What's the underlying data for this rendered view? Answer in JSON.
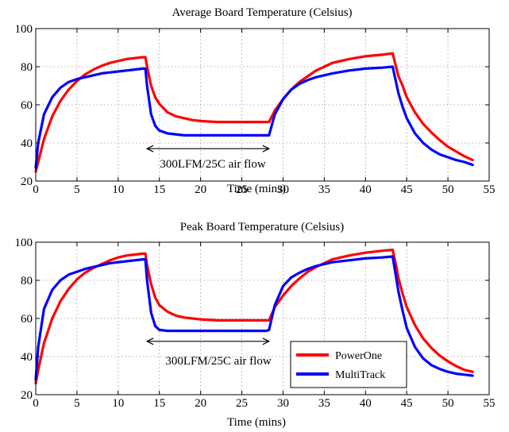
{
  "chart_data": [
    {
      "type": "line",
      "title": "Average Board Temperature (Celsius)",
      "xlabel": "Time (mins)",
      "ylabel": "",
      "xlim": [
        0,
        55
      ],
      "ylim": [
        20,
        100
      ],
      "xticks": [
        "0",
        "5",
        "10",
        "15",
        "20",
        "25",
        "30",
        "35",
        "40",
        "45",
        "50",
        "55"
      ],
      "yticks": [
        "20",
        "40",
        "60",
        "80",
        "100"
      ],
      "grid": true,
      "annotation": {
        "text": "300LFM/25C air flow",
        "x_start": 13.5,
        "x_end": 28.3,
        "y": 37
      },
      "series": [
        {
          "color": "#ff0000",
          "x": [
            0,
            0.3,
            1,
            2,
            3,
            4,
            5,
            6,
            7,
            8,
            9,
            10,
            11,
            12,
            13,
            13.3,
            13.5,
            14,
            14.5,
            15,
            16,
            17,
            18,
            19,
            20,
            22,
            24,
            26,
            28,
            28.3,
            29,
            30,
            31,
            32,
            33,
            34,
            35,
            36,
            38,
            40,
            42,
            43.3,
            43.7,
            44,
            44.5,
            45,
            46,
            47,
            48,
            49,
            50,
            51,
            52,
            53
          ],
          "y": [
            25,
            30,
            42,
            54,
            62,
            68,
            72.5,
            76,
            78.5,
            80.5,
            82,
            83,
            84,
            84.5,
            85,
            85,
            80,
            70,
            64,
            60.5,
            56,
            54,
            53,
            52,
            51.5,
            51,
            51,
            51,
            51,
            51,
            57,
            63,
            68,
            72,
            75,
            78,
            80,
            82,
            84,
            85.5,
            86.3,
            87,
            80,
            75,
            70,
            64,
            56,
            50,
            45.5,
            41.5,
            38,
            35.5,
            33,
            31
          ]
        },
        {
          "color": "#0000ff",
          "x": [
            0,
            0.3,
            1,
            2,
            3,
            4,
            5,
            6,
            7,
            8,
            9,
            10,
            11,
            12,
            13,
            13.3,
            13.5,
            14,
            14.5,
            15,
            16,
            18,
            20,
            22,
            24,
            26,
            28,
            28.3,
            29,
            30,
            31,
            32,
            33,
            34,
            35,
            36,
            38,
            40,
            42,
            43.3,
            43.7,
            44,
            44.5,
            45,
            46,
            47,
            48,
            49,
            50,
            51,
            52,
            53
          ],
          "y": [
            27,
            40,
            55,
            64,
            69,
            72,
            73.5,
            74.5,
            75.5,
            76.5,
            77,
            77.5,
            78,
            78.5,
            79,
            79,
            70,
            55,
            49,
            46.5,
            45,
            44,
            44,
            44,
            44,
            44,
            44,
            44,
            55,
            63,
            68,
            71,
            73,
            74.5,
            75.5,
            76.5,
            78,
            79,
            79.5,
            80,
            72,
            66,
            59,
            53,
            45,
            40,
            36.5,
            34,
            32.5,
            31,
            30,
            28.5
          ]
        }
      ]
    },
    {
      "type": "line",
      "title": "Peak Board Temperature (Celsius)",
      "xlabel": "Time (mins)",
      "ylabel": "",
      "xlim": [
        0,
        55
      ],
      "ylim": [
        20,
        100
      ],
      "xticks": [
        "0",
        "5",
        "10",
        "15",
        "20",
        "25",
        "30",
        "35",
        "40",
        "45",
        "50",
        "55"
      ],
      "yticks": [
        "20",
        "40",
        "60",
        "80",
        "100"
      ],
      "grid": true,
      "legend_position": "bottom-right",
      "annotation": {
        "text": "300LFM/25C air flow",
        "x_start": 13.5,
        "x_end": 28.3,
        "y": 48
      },
      "series": [
        {
          "name": "PowerOne",
          "color": "#ff0000",
          "x": [
            0,
            0.3,
            1,
            2,
            3,
            4,
            5,
            6,
            7,
            8,
            9,
            10,
            11,
            12,
            13,
            13.3,
            13.5,
            14,
            14.5,
            15,
            16,
            17,
            18,
            19,
            20,
            22,
            24,
            26,
            28,
            28.3,
            29,
            30,
            31,
            32,
            33,
            34,
            35,
            36,
            38,
            40,
            42,
            43.3,
            43.7,
            44,
            44.5,
            45,
            46,
            47,
            48,
            49,
            50,
            51,
            52,
            53
          ],
          "y": [
            26,
            33,
            47,
            60,
            69,
            75.5,
            80.5,
            84,
            86.5,
            88.5,
            90.5,
            92,
            93,
            93.5,
            94,
            94,
            88,
            78,
            71,
            67,
            63.5,
            61.5,
            60.5,
            60,
            59.5,
            59,
            59,
            59,
            59,
            59,
            66,
            72,
            77,
            81,
            84.5,
            87,
            89,
            91,
            93,
            94.5,
            95.5,
            96,
            88,
            81,
            73,
            66,
            56.5,
            49.5,
            44.5,
            40.5,
            37.5,
            35,
            33,
            32
          ]
        },
        {
          "name": "MultiTrack",
          "color": "#0000ff",
          "x": [
            0,
            0.3,
            1,
            2,
            3,
            4,
            5,
            6,
            7,
            8,
            9,
            10,
            11,
            12,
            13,
            13.3,
            13.5,
            14,
            14.5,
            15,
            16,
            18,
            20,
            22,
            24,
            26,
            28,
            28.3,
            29,
            30,
            31,
            32,
            33,
            34,
            35,
            36,
            38,
            40,
            42,
            43.3,
            43.7,
            44,
            44.5,
            45,
            46,
            47,
            48,
            49,
            50,
            51,
            52,
            53
          ],
          "y": [
            28,
            45,
            65,
            75,
            80,
            83,
            84.5,
            86,
            87,
            88,
            89,
            89.5,
            90,
            90.5,
            91,
            91,
            80,
            63,
            56,
            54,
            53.5,
            53.5,
            53.5,
            53.5,
            53.5,
            53.5,
            53.5,
            54,
            67,
            77,
            81.5,
            84,
            86,
            87.5,
            88.5,
            89.5,
            90.5,
            91.5,
            92,
            92.5,
            82,
            74,
            64,
            55,
            45,
            39,
            35.5,
            33.5,
            32,
            31,
            30.5,
            30
          ]
        }
      ]
    }
  ]
}
